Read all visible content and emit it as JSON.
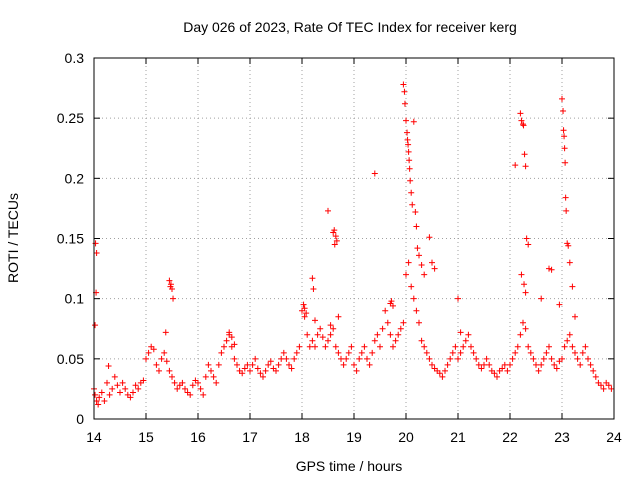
{
  "chart_data": {
    "type": "scatter",
    "title": "Day 026 of 2023, Rate Of TEC Index for receiver kerg",
    "xlabel": "GPS time / hours",
    "ylabel": "ROTI / TECUs",
    "xlim": [
      14,
      24
    ],
    "ylim": [
      0,
      0.3
    ],
    "x_ticks": [
      "14",
      "15",
      "16",
      "17",
      "18",
      "19",
      "20",
      "21",
      "22",
      "23",
      "24"
    ],
    "y_ticks": [
      "0",
      "0.05",
      "0.1",
      "0.15",
      "0.2",
      "0.25",
      "0.3"
    ],
    "grid": true,
    "marker": "+",
    "color": "#ff0000",
    "series": [
      {
        "x": [
          14.0,
          14.02,
          14.05,
          14.08,
          14.1,
          14.15,
          14.2,
          14.25,
          14.3,
          14.35,
          14.4,
          14.45,
          14.5,
          14.55,
          14.6,
          14.65,
          14.7,
          14.75,
          14.8,
          14.85,
          14.9,
          14.95,
          15.0,
          15.05,
          15.1,
          15.15,
          15.2,
          15.25,
          15.3,
          15.35,
          15.4,
          15.45,
          15.5,
          15.55,
          15.6,
          15.65,
          15.7,
          15.75,
          15.8,
          15.85,
          15.9,
          15.95,
          16.0,
          16.05,
          16.1,
          16.15,
          16.2,
          16.25,
          16.3,
          16.35,
          16.4,
          16.45,
          16.5,
          16.55,
          16.6,
          16.65,
          16.7,
          16.75,
          16.8,
          16.85,
          16.9,
          16.95,
          17.0,
          17.05,
          17.1,
          17.15,
          17.2,
          17.25,
          17.3,
          17.35,
          17.4,
          17.45,
          17.5,
          17.55,
          17.6,
          17.65,
          17.7,
          17.75,
          17.8,
          17.85,
          17.9,
          17.95,
          18.0,
          18.05,
          18.1,
          18.15,
          18.2,
          18.25,
          18.3,
          18.35,
          18.4,
          18.45,
          18.5,
          18.55,
          18.6,
          18.65,
          18.7,
          18.75,
          18.8,
          18.85,
          18.9,
          18.95,
          19.0,
          19.05,
          19.1,
          19.15,
          19.2,
          19.25,
          19.3,
          19.35,
          19.4,
          19.45,
          19.5,
          19.55,
          19.6,
          19.65,
          19.7,
          19.75,
          19.8,
          19.85,
          19.9,
          19.95,
          20.0,
          20.05,
          20.1,
          20.15,
          20.2,
          20.25,
          20.3,
          20.35,
          20.4,
          20.45,
          20.5,
          20.55,
          20.6,
          20.65,
          20.7,
          20.75,
          20.8,
          20.85,
          20.9,
          20.95,
          21.0,
          21.05,
          21.1,
          21.15,
          21.2,
          21.25,
          21.3,
          21.35,
          21.4,
          21.45,
          21.5,
          21.55,
          21.6,
          21.65,
          21.7,
          21.75,
          21.8,
          21.85,
          21.9,
          21.95,
          22.0,
          22.05,
          22.1,
          22.15,
          22.2,
          22.25,
          22.3,
          22.35,
          22.4,
          22.45,
          22.5,
          22.55,
          22.6,
          22.65,
          22.7,
          22.75,
          22.8,
          22.85,
          22.9,
          22.95,
          23.0,
          23.05,
          23.1,
          23.15,
          23.2,
          23.25,
          23.3,
          23.35,
          23.4,
          23.45,
          23.5,
          23.55,
          23.6,
          23.65,
          23.7,
          23.75,
          23.8,
          23.85,
          23.9,
          23.95
        ],
        "y": [
          0.025,
          0.02,
          0.015,
          0.012,
          0.018,
          0.022,
          0.015,
          0.03,
          0.02,
          0.025,
          0.035,
          0.028,
          0.022,
          0.03,
          0.025,
          0.02,
          0.018,
          0.022,
          0.028,
          0.025,
          0.03,
          0.032,
          0.05,
          0.055,
          0.06,
          0.058,
          0.045,
          0.04,
          0.05,
          0.055,
          0.048,
          0.04,
          0.035,
          0.03,
          0.025,
          0.028,
          0.03,
          0.025,
          0.022,
          0.02,
          0.028,
          0.032,
          0.03,
          0.025,
          0.02,
          0.035,
          0.045,
          0.04,
          0.035,
          0.03,
          0.045,
          0.055,
          0.06,
          0.065,
          0.07,
          0.06,
          0.05,
          0.045,
          0.04,
          0.038,
          0.042,
          0.045,
          0.04,
          0.045,
          0.05,
          0.042,
          0.038,
          0.035,
          0.04,
          0.045,
          0.048,
          0.042,
          0.04,
          0.045,
          0.05,
          0.055,
          0.05,
          0.045,
          0.042,
          0.05,
          0.055,
          0.06,
          0.09,
          0.085,
          0.07,
          0.06,
          0.065,
          0.06,
          0.07,
          0.075,
          0.068,
          0.06,
          0.065,
          0.07,
          0.075,
          0.06,
          0.055,
          0.05,
          0.045,
          0.05,
          0.055,
          0.06,
          0.045,
          0.04,
          0.05,
          0.055,
          0.06,
          0.05,
          0.045,
          0.055,
          0.065,
          0.07,
          0.06,
          0.075,
          0.09,
          0.08,
          0.07,
          0.06,
          0.065,
          0.07,
          0.075,
          0.08,
          0.12,
          0.13,
          0.11,
          0.1,
          0.09,
          0.08,
          0.065,
          0.06,
          0.055,
          0.05,
          0.045,
          0.042,
          0.04,
          0.038,
          0.035,
          0.04,
          0.045,
          0.05,
          0.055,
          0.06,
          0.05,
          0.055,
          0.06,
          0.065,
          0.07,
          0.06,
          0.055,
          0.05,
          0.045,
          0.042,
          0.045,
          0.05,
          0.045,
          0.04,
          0.038,
          0.035,
          0.04,
          0.042,
          0.045,
          0.04,
          0.045,
          0.05,
          0.055,
          0.06,
          0.07,
          0.08,
          0.075,
          0.06,
          0.055,
          0.05,
          0.045,
          0.04,
          0.045,
          0.05,
          0.055,
          0.06,
          0.05,
          0.045,
          0.042,
          0.048,
          0.05,
          0.06,
          0.065,
          0.07,
          0.06,
          0.055,
          0.05,
          0.045,
          0.055,
          0.06,
          0.05,
          0.045,
          0.04,
          0.035,
          0.03,
          0.028,
          0.025,
          0.03,
          0.028,
          0.025
        ]
      },
      {
        "x": [
          14.03,
          14.05,
          14.04,
          14.02,
          14.28,
          15.45,
          15.48,
          15.5,
          15.52,
          15.47,
          15.38,
          16.6,
          16.65,
          16.7,
          18.03,
          18.05,
          18.08,
          18.2,
          18.22,
          18.25,
          18.5,
          18.55,
          18.6,
          18.62,
          18.65,
          18.67,
          18.63,
          18.7,
          19.4,
          19.7,
          19.72,
          19.75,
          19.95,
          19.97,
          19.98,
          20.0,
          20.02,
          20.03,
          20.04,
          20.05,
          20.06,
          20.07,
          20.08,
          20.1,
          20.12,
          20.15,
          20.18,
          20.2,
          20.22,
          20.25,
          20.3,
          20.35,
          20.45,
          20.5,
          20.55,
          21.0,
          21.05,
          22.1,
          22.2,
          22.22,
          22.25,
          22.26,
          22.28,
          22.3,
          22.32,
          22.35,
          22.22,
          22.27,
          22.3,
          22.6,
          22.75,
          22.8,
          22.95,
          23.0,
          23.02,
          23.03,
          23.04,
          23.05,
          23.06,
          23.07,
          23.08,
          23.1,
          23.12,
          23.15,
          23.2,
          23.25
        ],
        "y": [
          0.146,
          0.138,
          0.105,
          0.078,
          0.044,
          0.115,
          0.112,
          0.108,
          0.1,
          0.11,
          0.072,
          0.072,
          0.068,
          0.062,
          0.095,
          0.092,
          0.088,
          0.117,
          0.108,
          0.082,
          0.173,
          0.078,
          0.155,
          0.157,
          0.152,
          0.148,
          0.145,
          0.085,
          0.204,
          0.096,
          0.098,
          0.094,
          0.278,
          0.272,
          0.262,
          0.248,
          0.238,
          0.232,
          0.228,
          0.222,
          0.215,
          0.208,
          0.198,
          0.188,
          0.178,
          0.247,
          0.172,
          0.16,
          0.142,
          0.136,
          0.128,
          0.12,
          0.151,
          0.13,
          0.125,
          0.1,
          0.072,
          0.211,
          0.254,
          0.248,
          0.245,
          0.244,
          0.22,
          0.21,
          0.15,
          0.145,
          0.12,
          0.112,
          0.105,
          0.1,
          0.125,
          0.124,
          0.095,
          0.266,
          0.256,
          0.24,
          0.235,
          0.225,
          0.213,
          0.184,
          0.173,
          0.146,
          0.144,
          0.13,
          0.11,
          0.085
        ]
      }
    ]
  }
}
